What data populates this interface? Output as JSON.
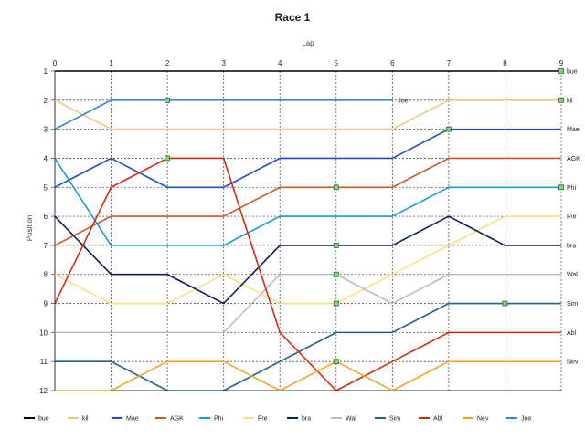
{
  "chart_data": {
    "type": "line",
    "title": "Race 1",
    "xlabel": "Lap",
    "ylabel": "Position",
    "x": [
      0,
      1,
      2,
      3,
      4,
      5,
      6,
      7,
      8,
      9
    ],
    "xlim": [
      0,
      9
    ],
    "ylim": [
      1,
      12
    ],
    "y_inverted": true,
    "grid": true,
    "legend_position": "bottom",
    "series": [
      {
        "name": "bue",
        "color": "#000000",
        "values": [
          1,
          1,
          1,
          1,
          1,
          1,
          1,
          1,
          1,
          1
        ],
        "markers": [
          9
        ]
      },
      {
        "name": "kil",
        "color": "#f0c77d",
        "values": [
          2,
          3,
          3,
          3,
          3,
          3,
          3,
          2,
          2,
          2
        ],
        "markers": [
          9
        ]
      },
      {
        "name": "Mae",
        "color": "#1f4fc4",
        "values": [
          5,
          4,
          5,
          5,
          4,
          4,
          4,
          3,
          3,
          3
        ],
        "markers": [
          7
        ]
      },
      {
        "name": "AGK",
        "color": "#c8572a",
        "values": [
          7,
          6,
          6,
          6,
          5,
          5,
          5,
          4,
          4,
          4
        ],
        "markers": [
          5
        ]
      },
      {
        "name": "Phi",
        "color": "#1a9ad4",
        "values": [
          4,
          7,
          7,
          7,
          6,
          6,
          6,
          5,
          5,
          5
        ],
        "markers": [
          9
        ]
      },
      {
        "name": "Fre",
        "color": "#f7e27a",
        "values": [
          8,
          9,
          9,
          8,
          9,
          9,
          8,
          7,
          6,
          6
        ],
        "markers": [
          5
        ]
      },
      {
        "name": "bra",
        "color": "#0d1f55",
        "values": [
          6,
          8,
          8,
          9,
          7,
          7,
          7,
          6,
          7,
          7
        ],
        "markers": [
          5
        ]
      },
      {
        "name": "Wal",
        "color": "#bdbdbd",
        "values": [
          10,
          10,
          10,
          10,
          8,
          8,
          9,
          8,
          8,
          8
        ],
        "markers": [
          5
        ]
      },
      {
        "name": "Sim",
        "color": "#1e5f8c",
        "values": [
          11,
          11,
          12,
          12,
          11,
          10,
          10,
          9,
          9,
          9
        ],
        "markers": [
          8
        ]
      },
      {
        "name": "Abl",
        "color": "#d42a12",
        "values": [
          9,
          5,
          4,
          4,
          10,
          12,
          11,
          10,
          10,
          10
        ],
        "markers": [
          2
        ]
      },
      {
        "name": "Nev",
        "color": "#f2a626",
        "values": [
          12,
          12,
          11,
          11,
          12,
          11,
          12,
          11,
          11,
          11
        ],
        "markers": [
          5
        ]
      },
      {
        "name": "Joe",
        "color": "#2f86d8",
        "values": [
          3,
          2,
          2,
          2,
          2,
          2,
          2,
          null,
          null,
          null
        ],
        "markers": [
          2
        ]
      }
    ]
  }
}
